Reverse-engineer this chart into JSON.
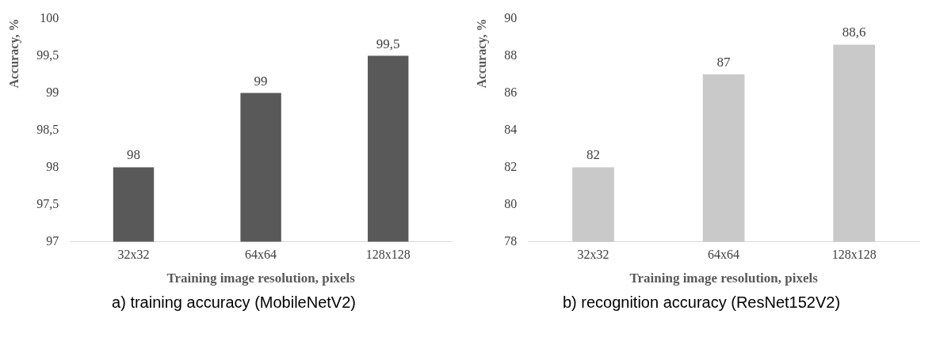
{
  "chart_data": [
    {
      "type": "bar",
      "categories": [
        "32x32",
        "64x64",
        "128x128"
      ],
      "values": [
        98,
        99,
        99.5
      ],
      "value_labels": [
        "98",
        "99",
        "99,5"
      ],
      "color": "#595959",
      "ylim": [
        97,
        100
      ],
      "yticks": [
        97,
        {
          "value": 97.5,
          "label": "97,5"
        },
        98,
        {
          "value": 98.5,
          "label": "98,5"
        },
        99,
        {
          "value": 99.5,
          "label": "99,5"
        },
        100
      ],
      "xlabel": "Training image resolution, pixels",
      "ylabel": "Accuracy, %",
      "grid": false,
      "annotations": [
        "a) training accuracy (MobileNetV2)"
      ]
    },
    {
      "type": "bar",
      "categories": [
        "32x32",
        "64x64",
        "128x128"
      ],
      "values": [
        82,
        87,
        88.6
      ],
      "value_labels": [
        "82",
        "87",
        "88,6"
      ],
      "color": "#c9c9c9",
      "ylim": [
        78,
        90
      ],
      "yticks": [
        78,
        80,
        82,
        84,
        86,
        88,
        90
      ],
      "xlabel": "Training image resolution, pixels",
      "ylabel": "Accuracy, %",
      "grid": false,
      "annotations": [
        "b) recognition accuracy (ResNet152V2)"
      ]
    }
  ]
}
